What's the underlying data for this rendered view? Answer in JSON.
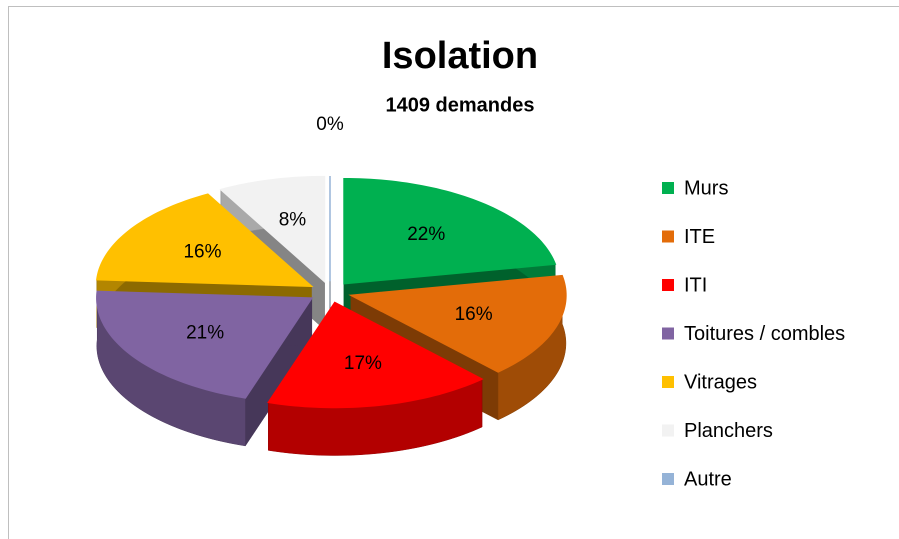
{
  "chart_data": {
    "type": "pie3d",
    "title": "Isolation",
    "subtitle": "1409 demandes",
    "categories": [
      "Murs",
      "ITE",
      "ITI",
      "Toitures / combles",
      "Vitrages",
      "Planchers",
      "Autre"
    ],
    "values": [
      22,
      16,
      17,
      21,
      16,
      8,
      0
    ],
    "value_labels": [
      "22%",
      "16%",
      "17%",
      "21%",
      "16%",
      "8%",
      "0%"
    ],
    "colors": [
      "#00b050",
      "#e36c09",
      "#ff0000",
      "#8064a2",
      "#ffc000",
      "#f2f2f2",
      "#95b3d7"
    ],
    "legend": "right"
  }
}
